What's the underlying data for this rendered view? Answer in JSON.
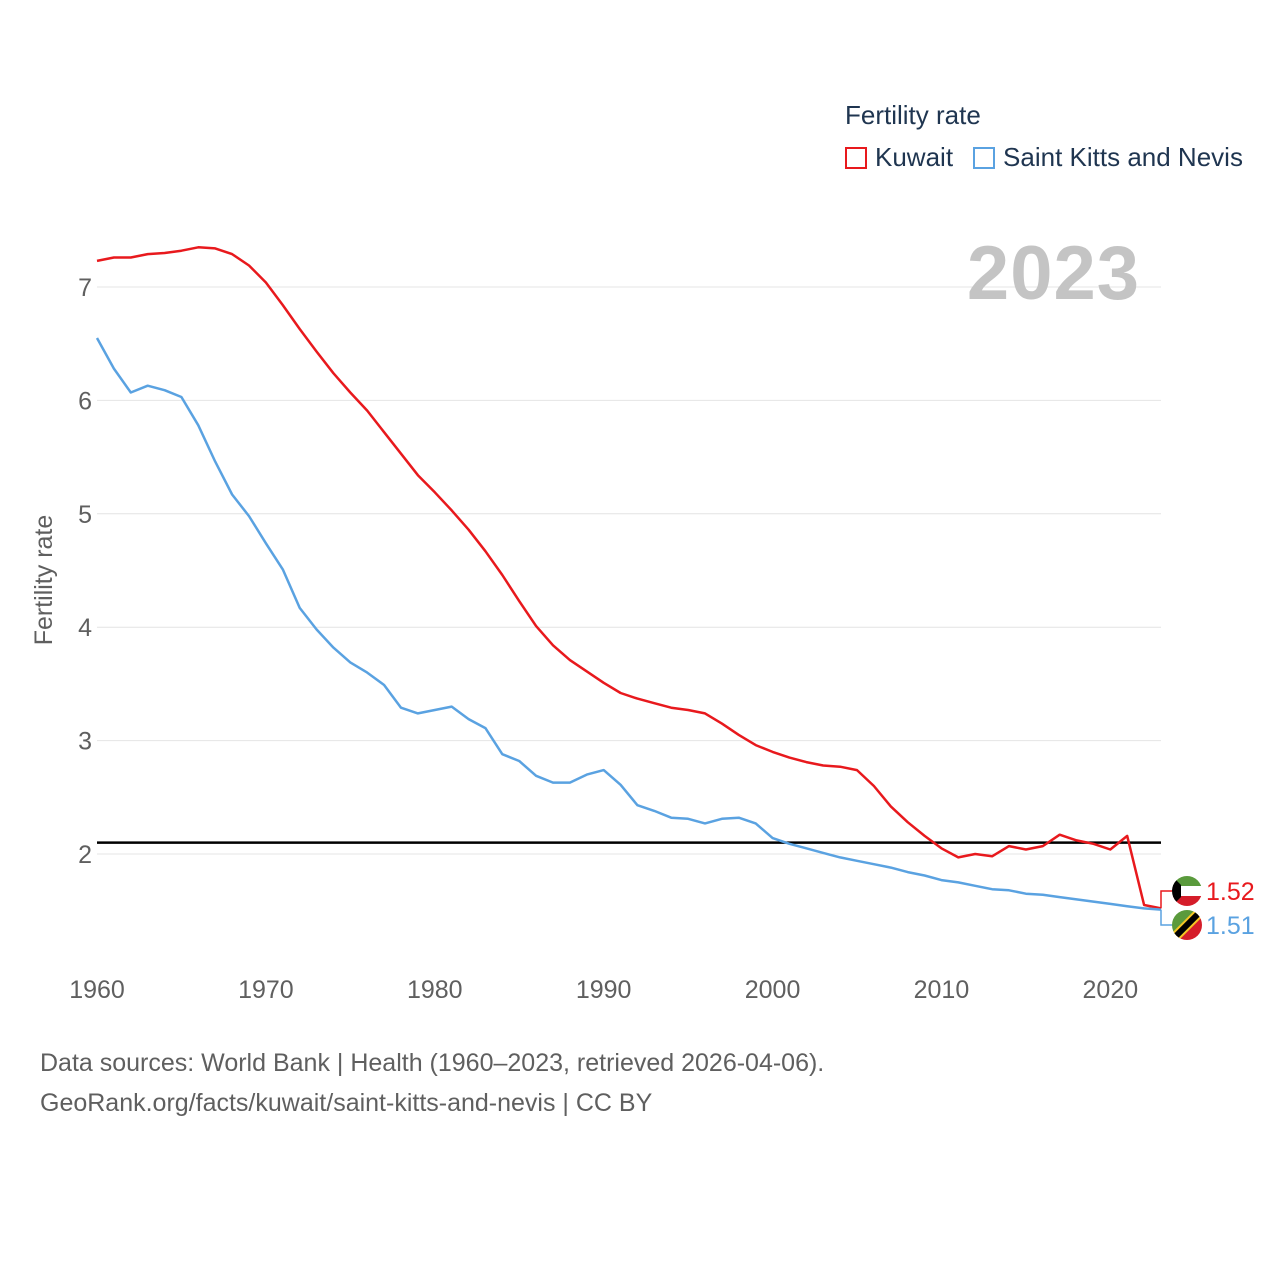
{
  "year_label": "2023",
  "legend": {
    "title": "Fertility rate",
    "items": [
      {
        "label": "Kuwait",
        "color": "#e8191d"
      },
      {
        "label": "Saint Kitts and Nevis",
        "color": "#5aa2e1"
      }
    ]
  },
  "footer": {
    "line1": "Data sources: World Bank | Health (1960–2023, retrieved 2026-04-06).",
    "line2": "GeoRank.org/facts/kuwait/saint-kitts-and-nevis | CC BY"
  },
  "chart_data": {
    "type": "line",
    "title": "Fertility rate",
    "xlabel": "",
    "ylabel": "Fertility rate",
    "xlim": [
      1960,
      2023
    ],
    "ylim": [
      1.2,
      7.5
    ],
    "x_ticks": [
      1960,
      1970,
      1980,
      1990,
      2000,
      2010,
      2020
    ],
    "y_ticks": [
      2,
      3,
      4,
      5,
      6,
      7
    ],
    "reference_line": 2.1,
    "grid": true,
    "legend_position": "top-right",
    "end_labels": [
      "1.52",
      "1.51"
    ],
    "x": [
      1960,
      1961,
      1962,
      1963,
      1964,
      1965,
      1966,
      1967,
      1968,
      1969,
      1970,
      1971,
      1972,
      1973,
      1974,
      1975,
      1976,
      1977,
      1978,
      1979,
      1980,
      1981,
      1982,
      1983,
      1984,
      1985,
      1986,
      1987,
      1988,
      1989,
      1990,
      1991,
      1992,
      1993,
      1994,
      1995,
      1996,
      1997,
      1998,
      1999,
      2000,
      2001,
      2002,
      2003,
      2004,
      2005,
      2006,
      2007,
      2008,
      2009,
      2010,
      2011,
      2012,
      2013,
      2014,
      2015,
      2016,
      2017,
      2018,
      2019,
      2020,
      2021,
      2022,
      2023
    ],
    "series": [
      {
        "name": "Kuwait",
        "color": "#e8191d",
        "values": [
          7.23,
          7.26,
          7.26,
          7.29,
          7.3,
          7.32,
          7.35,
          7.34,
          7.29,
          7.19,
          7.04,
          6.84,
          6.63,
          6.43,
          6.24,
          6.07,
          5.91,
          5.72,
          5.53,
          5.34,
          5.19,
          5.03,
          4.86,
          4.67,
          4.46,
          4.23,
          4.01,
          3.84,
          3.71,
          3.61,
          3.51,
          3.42,
          3.37,
          3.33,
          3.29,
          3.27,
          3.24,
          3.15,
          3.05,
          2.96,
          2.9,
          2.85,
          2.81,
          2.78,
          2.77,
          2.74,
          2.6,
          2.42,
          2.28,
          2.16,
          2.05,
          1.97,
          2.0,
          1.98,
          2.07,
          2.04,
          2.07,
          2.17,
          2.12,
          2.09,
          2.04,
          2.16,
          1.55,
          1.52
        ]
      },
      {
        "name": "Saint Kitts and Nevis",
        "color": "#5aa2e1",
        "values": [
          6.55,
          6.28,
          6.07,
          6.13,
          6.09,
          6.03,
          5.78,
          5.46,
          5.17,
          4.98,
          4.74,
          4.51,
          4.17,
          3.98,
          3.82,
          3.69,
          3.6,
          3.49,
          3.29,
          3.24,
          3.27,
          3.3,
          3.19,
          3.11,
          2.88,
          2.82,
          2.69,
          2.63,
          2.63,
          2.7,
          2.74,
          2.61,
          2.43,
          2.38,
          2.32,
          2.31,
          2.27,
          2.31,
          2.32,
          2.27,
          2.14,
          2.09,
          2.05,
          2.01,
          1.97,
          1.94,
          1.91,
          1.88,
          1.84,
          1.81,
          1.77,
          1.75,
          1.72,
          1.69,
          1.68,
          1.65,
          1.64,
          1.62,
          1.6,
          1.58,
          1.56,
          1.54,
          1.52,
          1.51
        ]
      }
    ]
  }
}
